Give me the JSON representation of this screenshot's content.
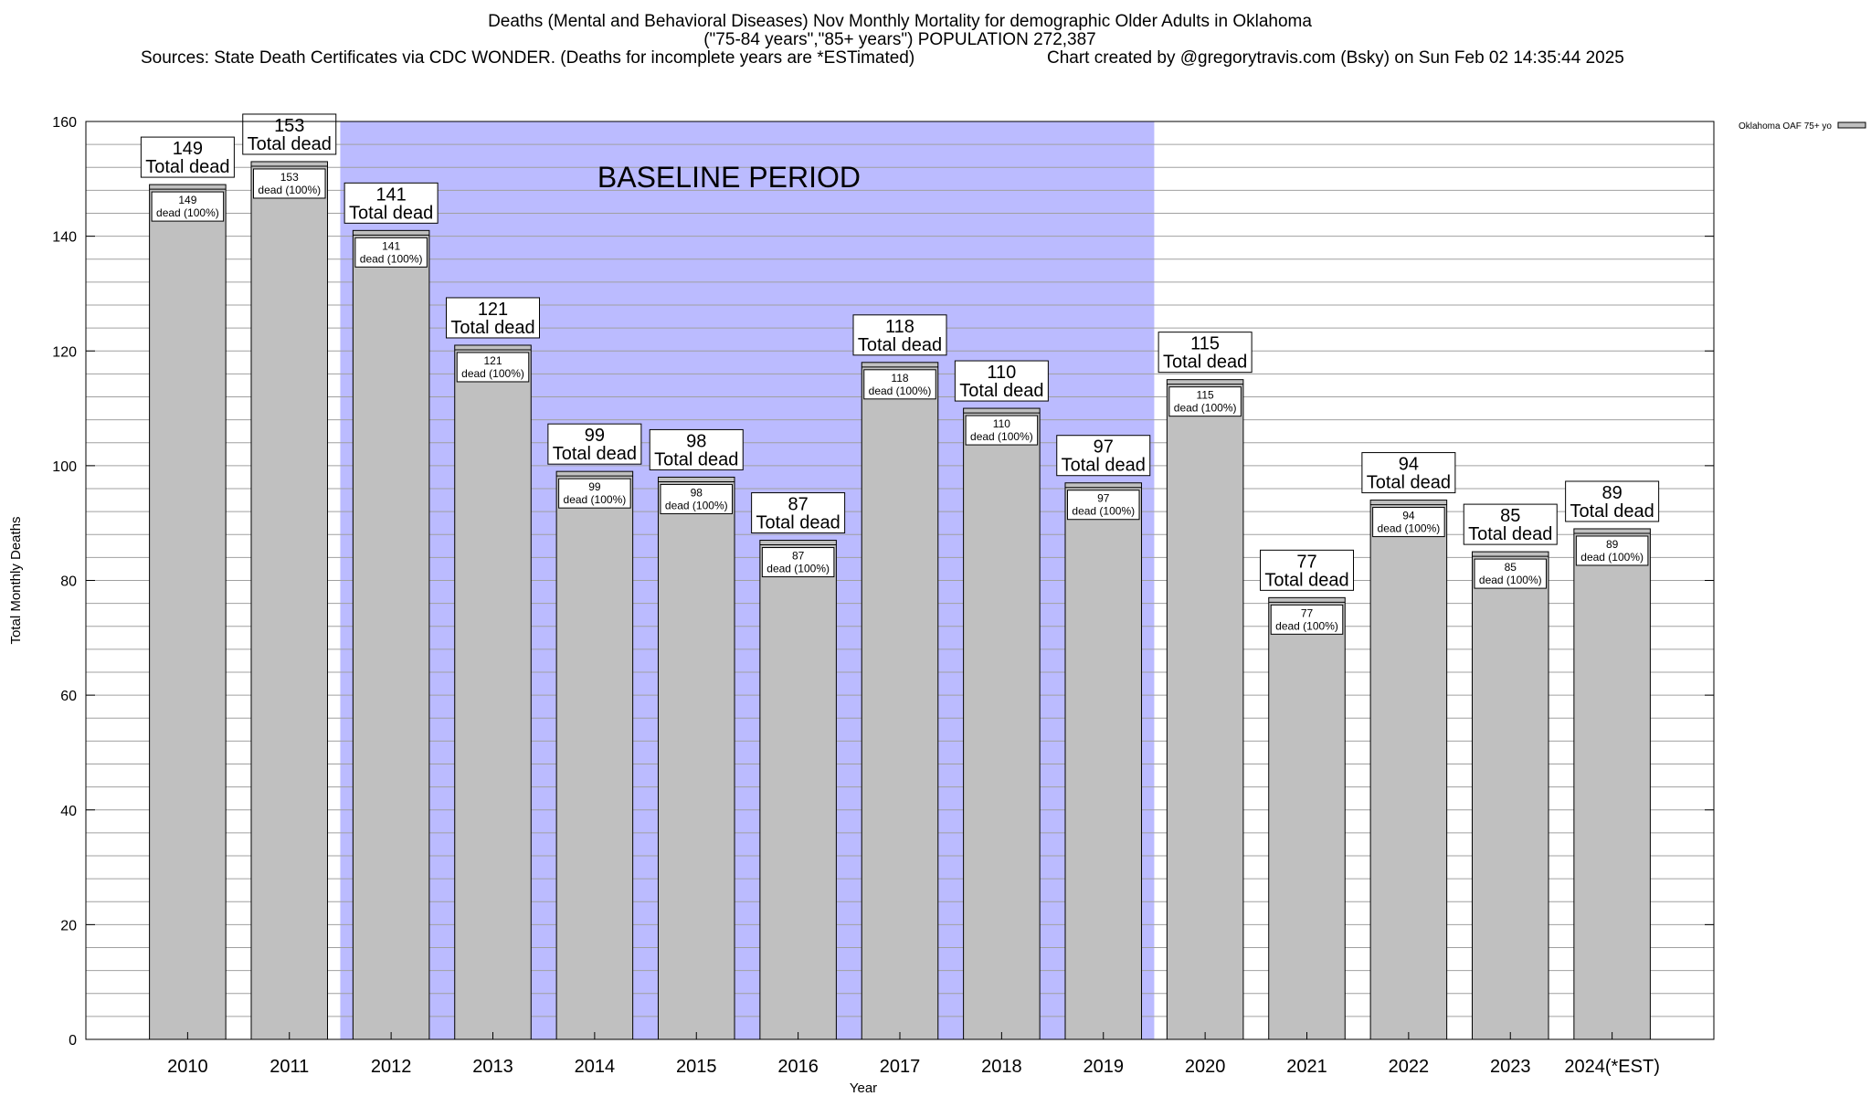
{
  "header": {
    "title_line1": "Deaths (Mental and Behavioral Diseases) Nov Monthly Mortality for demographic Older Adults in Oklahoma",
    "title_line2": "(\"75-84 years\",\"85+ years\") POPULATION 272,387",
    "sources": "Sources: State Death Certificates via CDC WONDER. (Deaths for incomplete years are *ESTimated)",
    "credit": "Chart created by @gregorytravis.com (Bsky) on Sun Feb 02 14:35:44 2025"
  },
  "chart_data": {
    "type": "bar",
    "xlabel": "Year",
    "ylabel": "Total Monthly Deaths",
    "ylim": [
      0,
      160
    ],
    "y_ticks": [
      0,
      20,
      40,
      60,
      80,
      100,
      120,
      140,
      160
    ],
    "grid": true,
    "legend": {
      "position": "top-right",
      "label": "Oklahoma OAF 75+ yo"
    },
    "baseline": {
      "label": "BASELINE PERIOD",
      "from": "2012",
      "to": "2019"
    },
    "categories": [
      "2010",
      "2011",
      "2012",
      "2013",
      "2014",
      "2015",
      "2016",
      "2017",
      "2018",
      "2019",
      "2020",
      "2021",
      "2022",
      "2023",
      "2024(*EST)"
    ],
    "series": [
      {
        "name": "Oklahoma OAF 75+ yo",
        "values": [
          149,
          153,
          141,
          121,
          99,
          98,
          87,
          118,
          110,
          97,
          115,
          77,
          94,
          85,
          89
        ]
      }
    ],
    "label_total_suffix": "Total dead",
    "label_inner_suffix": "dead (100%)",
    "colors": {
      "bar": "#c0c0c0",
      "baseline_fill": "#bbbbff",
      "grid": "#a0a0a0"
    }
  }
}
